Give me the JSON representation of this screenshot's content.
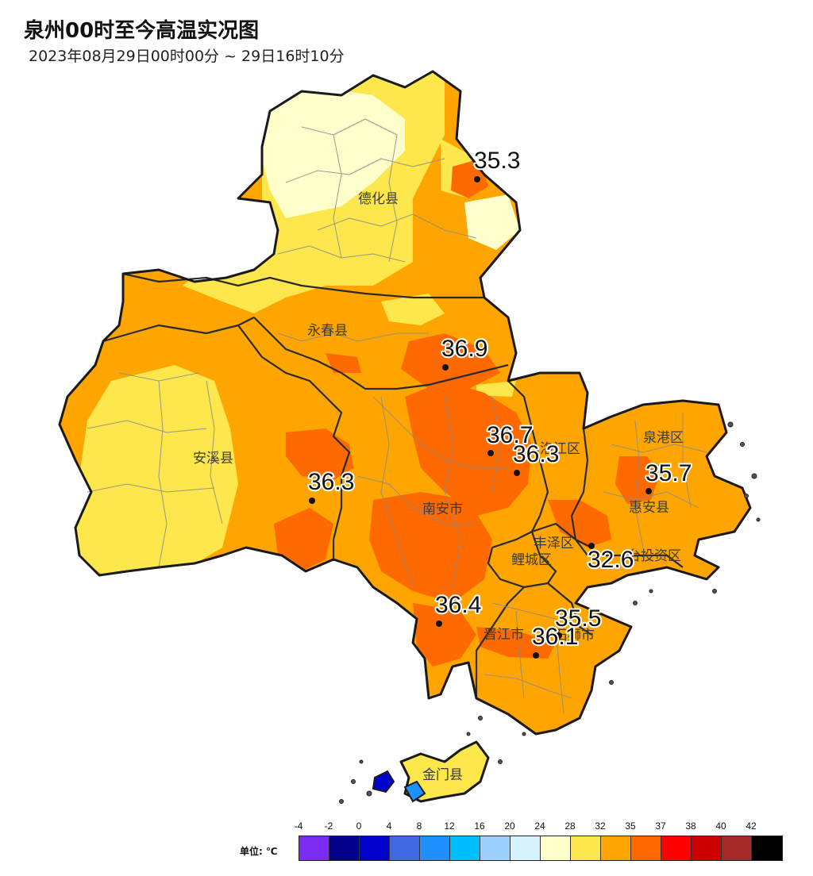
{
  "title": "泉州00时至今高温实况图",
  "subtitle": "2023年08月29日00时00分 ~ 29日16时10分",
  "counties": [
    {
      "name": "德化县"
    },
    {
      "name": "永春县"
    },
    {
      "name": "安溪县"
    },
    {
      "name": "南安市"
    },
    {
      "name": "泉港区"
    },
    {
      "name": "惠安县"
    },
    {
      "name": "丰泽区"
    },
    {
      "name": "鲤城区"
    },
    {
      "name": "晋江市"
    },
    {
      "name": "石狮市"
    },
    {
      "name": "台投资区"
    },
    {
      "name": "洛江区"
    },
    {
      "name": "金门县"
    }
  ],
  "stations": [
    {
      "value": "35.3"
    },
    {
      "value": "36.9"
    },
    {
      "value": "36.7"
    },
    {
      "value": "36.3"
    },
    {
      "value": "36.3"
    },
    {
      "value": "35.7"
    },
    {
      "value": "32.6"
    },
    {
      "value": "36.4"
    },
    {
      "value": "35.5"
    },
    {
      "value": "36.1"
    }
  ],
  "legend": {
    "unit": "单位: ℃",
    "ticks": [
      "-4",
      "-2",
      "0",
      "4",
      "8",
      "12",
      "16",
      "20",
      "24",
      "28",
      "32",
      "35",
      "37",
      "38",
      "40",
      "42"
    ],
    "colors": [
      "#7b2cf0",
      "#00008b",
      "#0000cd",
      "#4169e1",
      "#1e90ff",
      "#00bfff",
      "#9cd0ff",
      "#d6f2ff",
      "#ffffcc",
      "#fde74c",
      "#ffa500",
      "#ff6a00",
      "#ff0000",
      "#cd0000",
      "#a52a2a",
      "#000000"
    ]
  }
}
